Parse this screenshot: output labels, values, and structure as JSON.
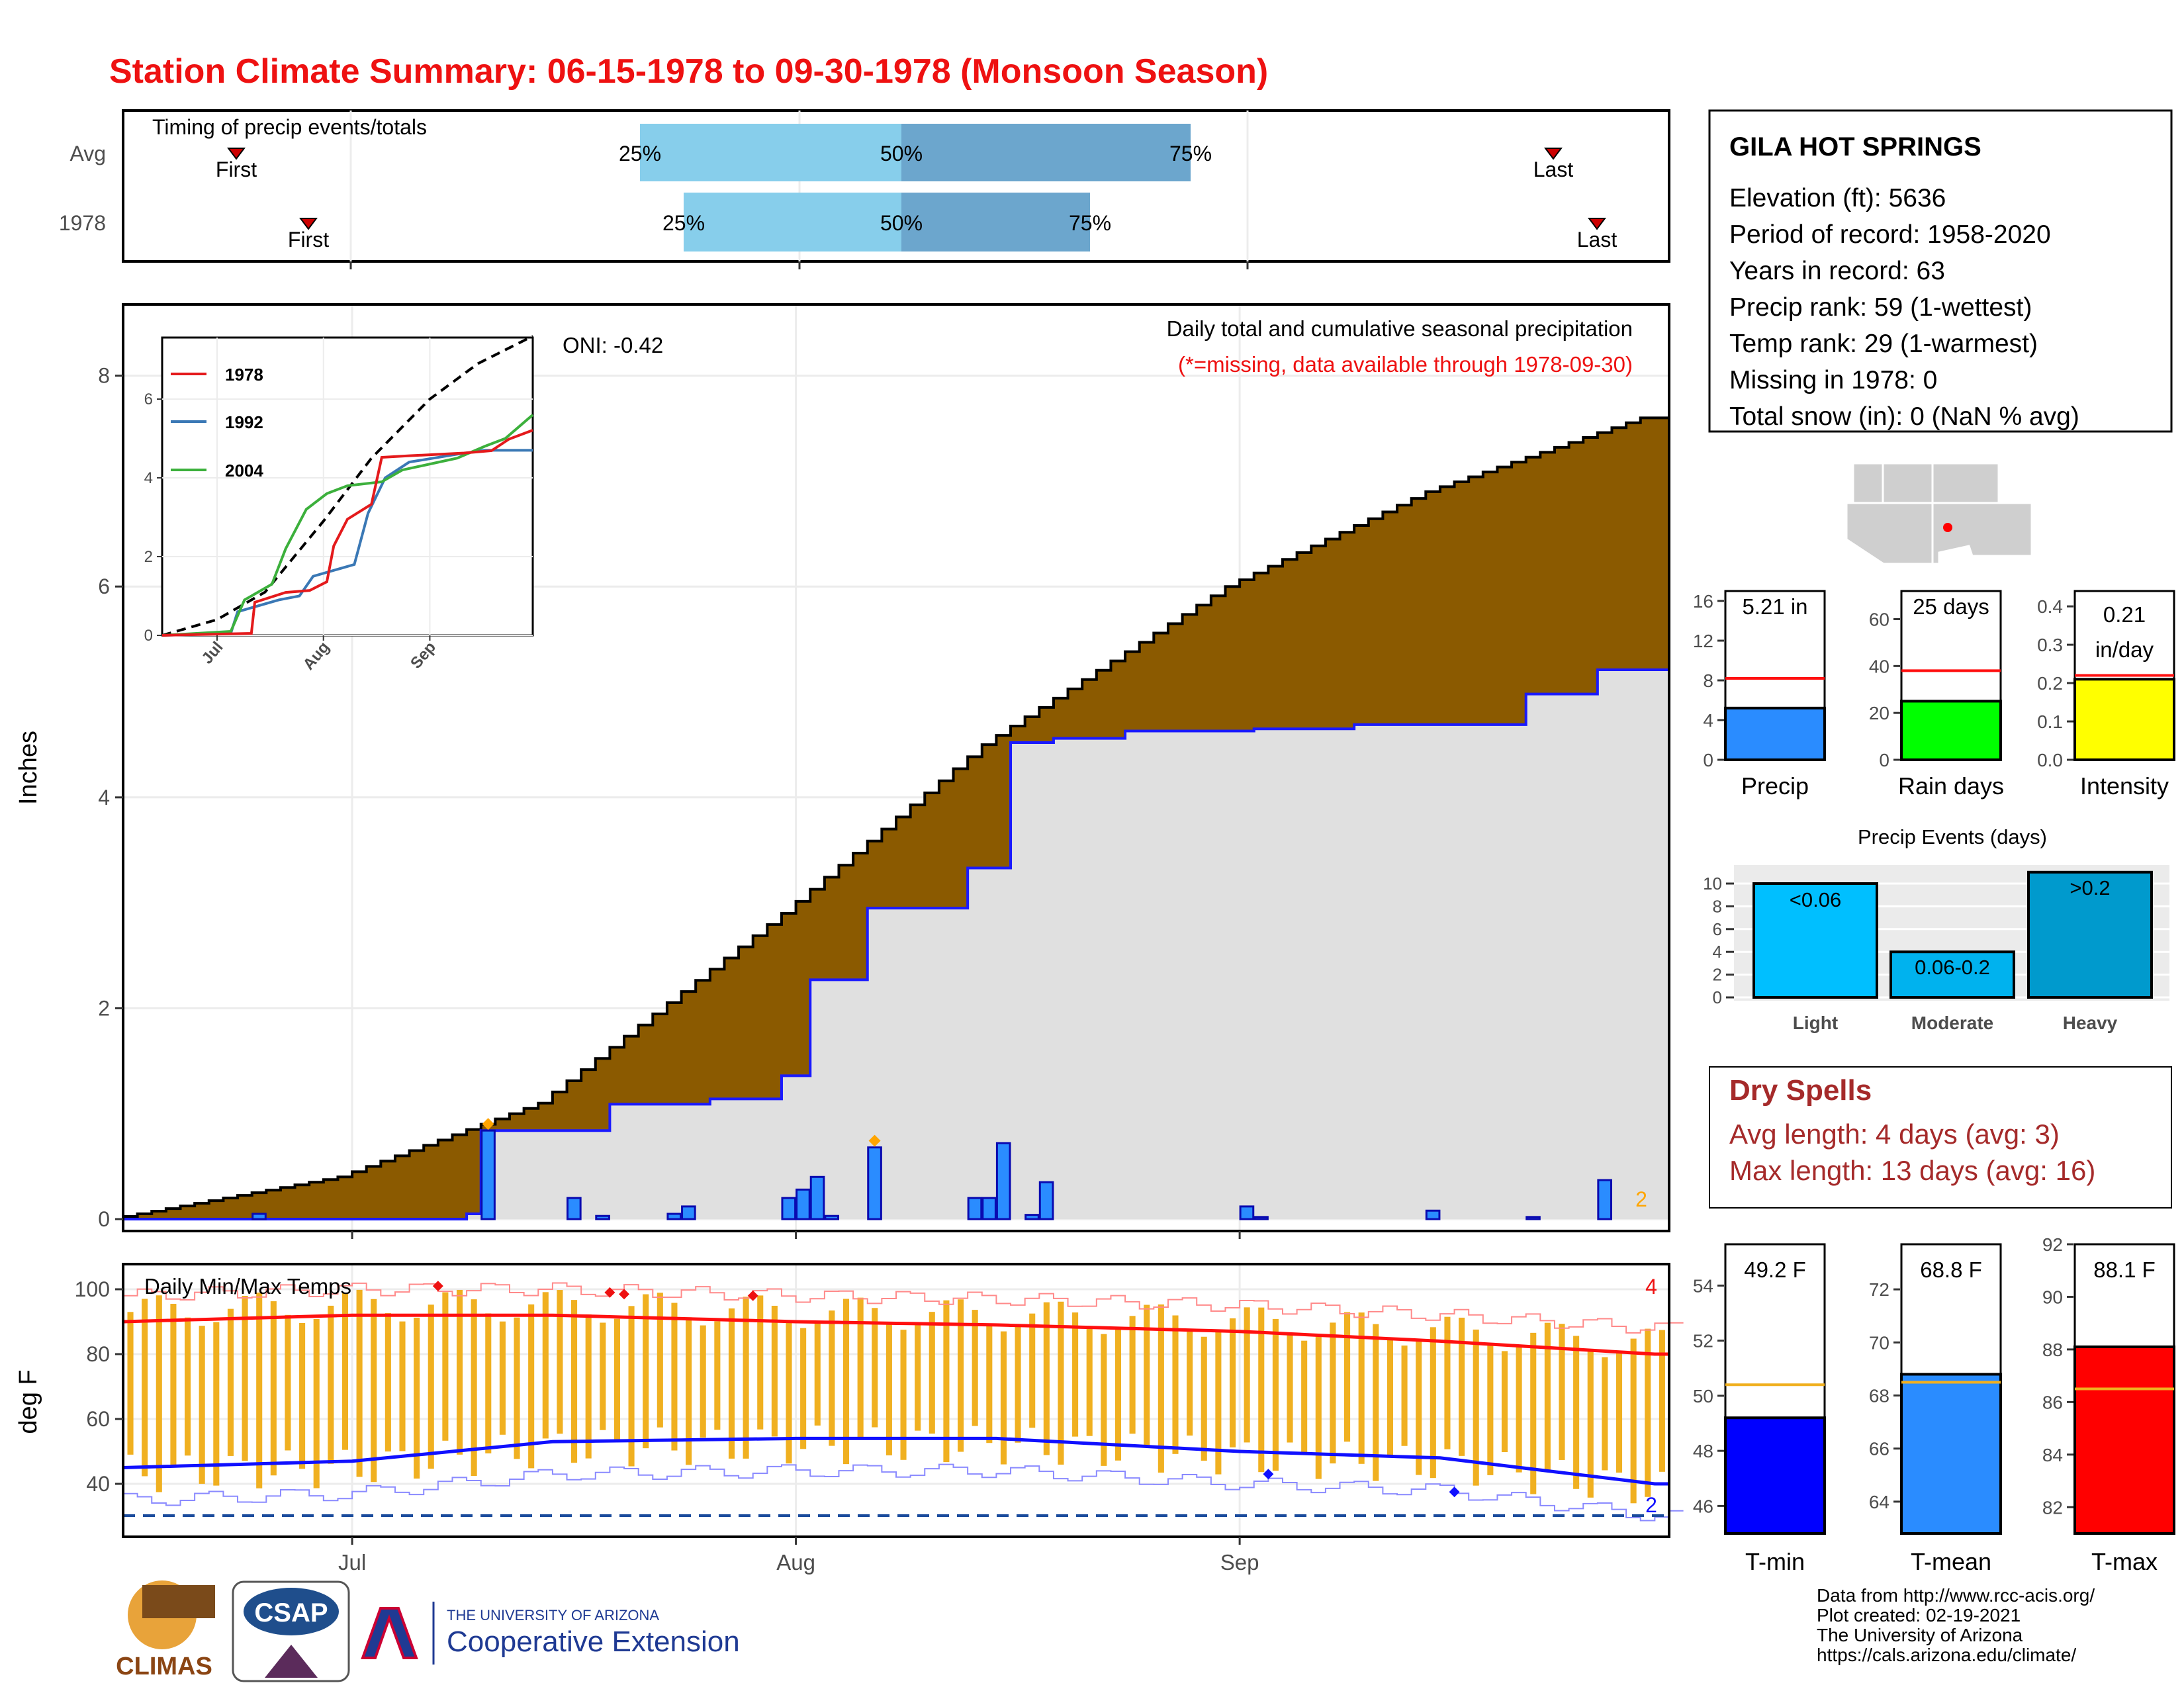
{
  "title": "Station Climate Summary: 06-15-1978 to 09-30-1978 (Monsoon Season)",
  "colors": {
    "title": "#ee1111",
    "dry_spells": "#a52a2a",
    "cumulative_avg": "#8b5a00",
    "cumulative_year": "#1a1aff",
    "daily_bar": "#2a8cff",
    "temp_bar": "#f0b020",
    "tmax_line": "#ff1010",
    "tmin_line": "#1010ff"
  },
  "timing": {
    "title": "Timing of precip events/totals",
    "rows": [
      "Avg",
      "1978"
    ],
    "avg": {
      "first": "First",
      "p25": "25%",
      "p50": "50%",
      "p75": "75%",
      "last": "Last"
    },
    "year": {
      "first": "First",
      "p25": "25%",
      "p50": "50%",
      "p75": "75%",
      "last": "Last"
    }
  },
  "station": {
    "name": "GILA HOT SPRINGS",
    "lines": [
      "Elevation (ft): 5636",
      "Period of record: 1958-2020",
      "Years in record: 63",
      "Precip rank: 59 (1-wettest)",
      "Temp rank: 29 (1-warmest)",
      "Missing in 1978: 0",
      "Total snow (in): 0 (NaN % avg)"
    ]
  },
  "precip_panel": {
    "ylabel": "Inches",
    "yticks": [
      "0",
      "2",
      "4",
      "6",
      "8"
    ],
    "xticks": [
      "Jul",
      "Aug",
      "Sep"
    ],
    "caption": "Daily total and cumulative seasonal precipitation",
    "missing_note": "(*=missing, data available through 1978-09-30)",
    "oni": "ONI: -0.42",
    "count_label": "2"
  },
  "inset": {
    "legend": [
      "1978",
      "1992",
      "2004"
    ],
    "yticks": [
      "0",
      "2",
      "4",
      "6"
    ],
    "xticks": [
      "Jul",
      "Aug",
      "Sep"
    ]
  },
  "temp_panel": {
    "ylabel": "deg F",
    "title": "Daily Min/Max Temps",
    "yticks": [
      "40",
      "60",
      "80",
      "100"
    ],
    "xticks": [
      "Jul",
      "Aug",
      "Sep"
    ],
    "count_high": "4",
    "count_low": "2"
  },
  "mini_bars": [
    {
      "label": "Precip",
      "value_text": "5.21 in",
      "yticks": [
        "0",
        "4",
        "8",
        "12",
        "16"
      ]
    },
    {
      "label": "Rain days",
      "value_text": "25 days",
      "yticks": [
        "0",
        "20",
        "40",
        "60"
      ]
    },
    {
      "label": "Intensity",
      "value_text": "0.21 in/day",
      "value_line1": "0.21",
      "value_line2": "in/day",
      "yticks": [
        "0.0",
        "0.1",
        "0.2",
        "0.3",
        "0.4"
      ]
    }
  ],
  "events": {
    "title": "Precip Events (days)",
    "yticks": [
      "0",
      "2",
      "4",
      "6",
      "8",
      "10"
    ],
    "bars": [
      {
        "cat": "Light",
        "label": "<0.06"
      },
      {
        "cat": "Moderate",
        "label": "0.06-0.2"
      },
      {
        "cat": "Heavy",
        "label": ">0.2"
      }
    ]
  },
  "dry_spells": {
    "title": "Dry Spells",
    "avg_line": "Avg length: 4 days (avg: 3)",
    "max_line": "Max length: 13 days (avg: 16)"
  },
  "temp_bars": [
    {
      "label": "T-min",
      "value_text": "49.2 F",
      "yticks": [
        "46",
        "48",
        "50",
        "52",
        "54"
      ]
    },
    {
      "label": "T-mean",
      "value_text": "68.8 F",
      "yticks": [
        "64",
        "66",
        "68",
        "70",
        "72"
      ]
    },
    {
      "label": "T-max",
      "value_text": "88.1 F",
      "yticks": [
        "82",
        "84",
        "86",
        "88",
        "90",
        "92"
      ]
    }
  ],
  "footer": {
    "lines": [
      "Data from http://www.rcc-acis.org/",
      "Plot created: 02-19-2021",
      "The University of Arizona",
      "https://cals.arizona.edu/climate/"
    ]
  },
  "logos": {
    "climas": "CLIMAS",
    "csap": "CSAP",
    "ua_small": "THE UNIVERSITY OF ARIZONA",
    "ua_big": "Cooperative Extension"
  },
  "chart_data": [
    {
      "type": "line",
      "title": "Daily total and cumulative seasonal precipitation",
      "ylabel": "Inches",
      "ylim": [
        0,
        8.4
      ],
      "x_range": [
        "1978-06-15",
        "1978-09-30"
      ],
      "series": [
        {
          "name": "cumulative average",
          "x": [
            "06-15",
            "07-01",
            "07-15",
            "08-01",
            "08-15",
            "09-01",
            "09-15",
            "09-30"
          ],
          "values": [
            0.0,
            0.4,
            1.1,
            2.9,
            4.5,
            6.0,
            6.9,
            7.6
          ]
        },
        {
          "name": "cumulative 1978",
          "x": [
            "06-15",
            "07-10",
            "07-11",
            "07-20",
            "07-27",
            "08-01",
            "08-03",
            "08-07",
            "08-14",
            "08-17",
            "08-20",
            "08-25",
            "09-03",
            "09-10",
            "09-22",
            "09-27",
            "09-30"
          ],
          "values": [
            0.0,
            0.05,
            0.84,
            1.09,
            1.14,
            1.36,
            2.27,
            2.95,
            3.33,
            4.52,
            4.56,
            4.63,
            4.65,
            4.69,
            4.98,
            5.21,
            5.21
          ]
        },
        {
          "name": "daily 1978",
          "x": [
            "06-25",
            "07-11",
            "07-17",
            "07-19",
            "07-24",
            "07-25",
            "08-01",
            "08-02",
            "08-03",
            "08-04",
            "08-07",
            "08-14",
            "08-15",
            "08-16",
            "08-18",
            "08-19",
            "09-02",
            "09-03",
            "09-15",
            "09-22",
            "09-27"
          ],
          "values": [
            0.05,
            0.84,
            0.2,
            0.03,
            0.05,
            0.12,
            0.2,
            0.28,
            0.4,
            0.03,
            0.68,
            0.2,
            0.2,
            0.72,
            0.04,
            0.35,
            0.12,
            0.02,
            0.08,
            0.02,
            0.37
          ]
        }
      ]
    },
    {
      "type": "line",
      "title": "Daily Min/Max Temps",
      "ylabel": "deg F",
      "ylim": [
        30,
        106
      ],
      "series": [
        {
          "name": "avg Tmax",
          "x": [
            "06-15",
            "07-01",
            "07-15",
            "08-01",
            "08-15",
            "09-01",
            "09-15",
            "09-30"
          ],
          "values": [
            90,
            92,
            92,
            90,
            89,
            87,
            84,
            80
          ]
        },
        {
          "name": "avg Tmin",
          "x": [
            "06-15",
            "07-01",
            "07-15",
            "08-01",
            "08-15",
            "09-01",
            "09-15",
            "09-30"
          ],
          "values": [
            45,
            47,
            53,
            54,
            54,
            50,
            48,
            40
          ]
        }
      ]
    },
    {
      "type": "bar",
      "title": "Precip Events (days)",
      "categories": [
        "Light",
        "Moderate",
        "Heavy"
      ],
      "values": [
        10,
        4,
        11
      ],
      "ylim": [
        0,
        11.5
      ]
    },
    {
      "type": "bar",
      "categories": [
        "Precip",
        "Rain days",
        "Intensity"
      ],
      "values": [
        5.21,
        25,
        0.21
      ],
      "averages": [
        8.2,
        38,
        0.22
      ],
      "ylims": [
        [
          0,
          17
        ],
        [
          0,
          72
        ],
        [
          0,
          0.44
        ]
      ]
    },
    {
      "type": "bar",
      "categories": [
        "T-min",
        "T-mean",
        "T-max"
      ],
      "values": [
        49.2,
        68.8,
        88.1
      ],
      "averages": [
        50.4,
        68.5,
        86.5
      ],
      "ylims": [
        [
          45,
          55.5
        ],
        [
          62.8,
          73.7
        ],
        [
          81,
          92
        ]
      ]
    }
  ]
}
